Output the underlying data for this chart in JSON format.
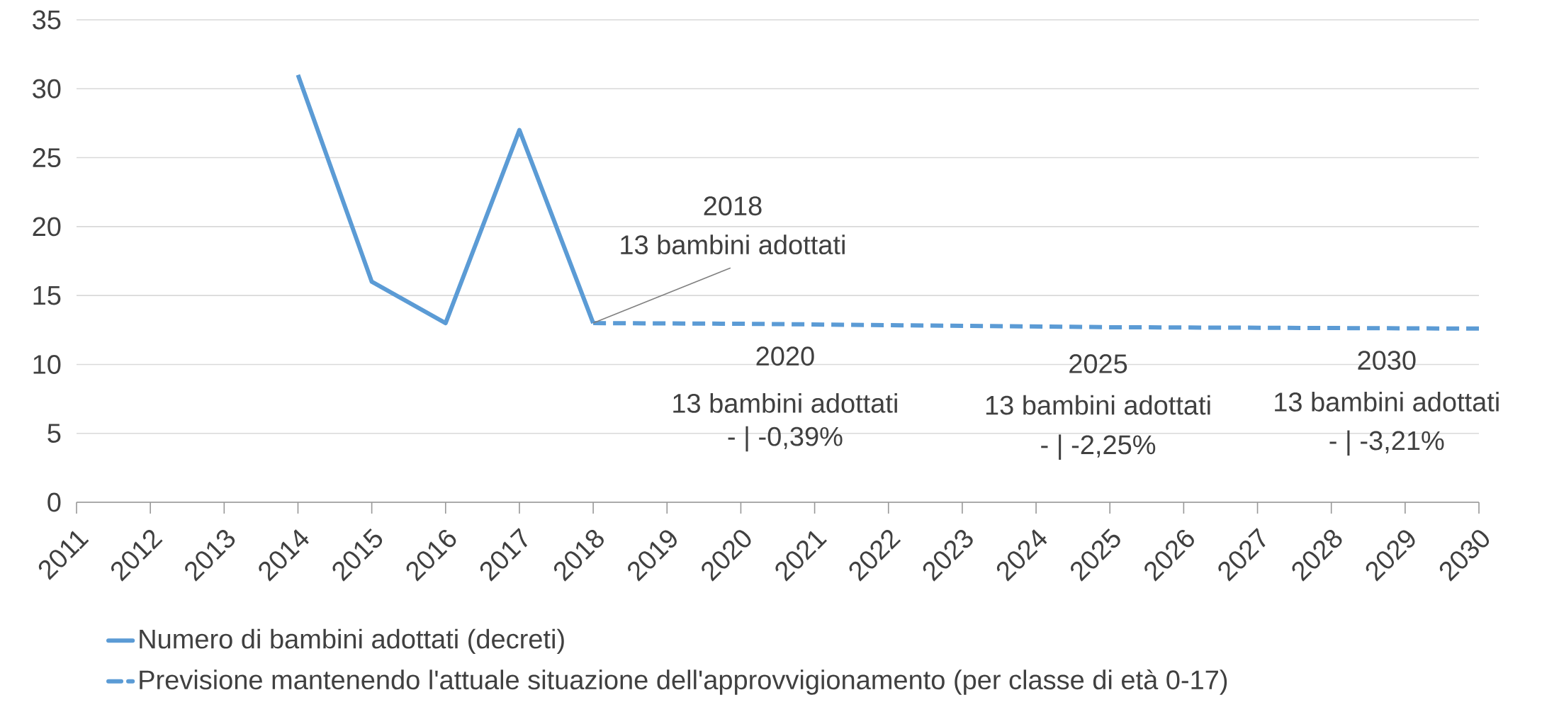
{
  "chart_data": {
    "type": "line",
    "x": [
      2014,
      2015,
      2016,
      2017,
      2018
    ],
    "series": [
      {
        "name": "Numero di bambini adottati (decreti)",
        "color": "#5b9bd5",
        "values": [
          31,
          16,
          13,
          27,
          13
        ],
        "line_style": "solid"
      },
      {
        "name": "Previsione mantenendo l'attuale situazione dell'approvvigionamento (per classe di età 0-17)",
        "color": "#5b9bd5",
        "x": [
          2018,
          2020,
          2025,
          2030
        ],
        "values": [
          13,
          12.95,
          12.7,
          12.6
        ],
        "line_style": "dashed"
      }
    ],
    "xlim": [
      2011,
      2030
    ],
    "xticks": [
      2011,
      2012,
      2013,
      2014,
      2015,
      2016,
      2017,
      2018,
      2019,
      2020,
      2021,
      2022,
      2023,
      2024,
      2025,
      2026,
      2027,
      2028,
      2029,
      2030
    ],
    "ylim": [
      0,
      35
    ],
    "yticks": [
      0,
      5,
      10,
      15,
      20,
      25,
      30,
      35
    ],
    "grid": "y",
    "legend": "bottom",
    "marker": "none",
    "annotations": [
      "2018",
      {
        "text": "13 bambini adottati",
        "x": 2018,
        "y": 13
      },
      "2020",
      "13 bambini adottati",
      "- | -0,39%",
      "2025",
      "13 bambini adottati",
      "- | -2,25%",
      "2030",
      "13 bambini adottati",
      "- | -3,21%"
    ]
  }
}
